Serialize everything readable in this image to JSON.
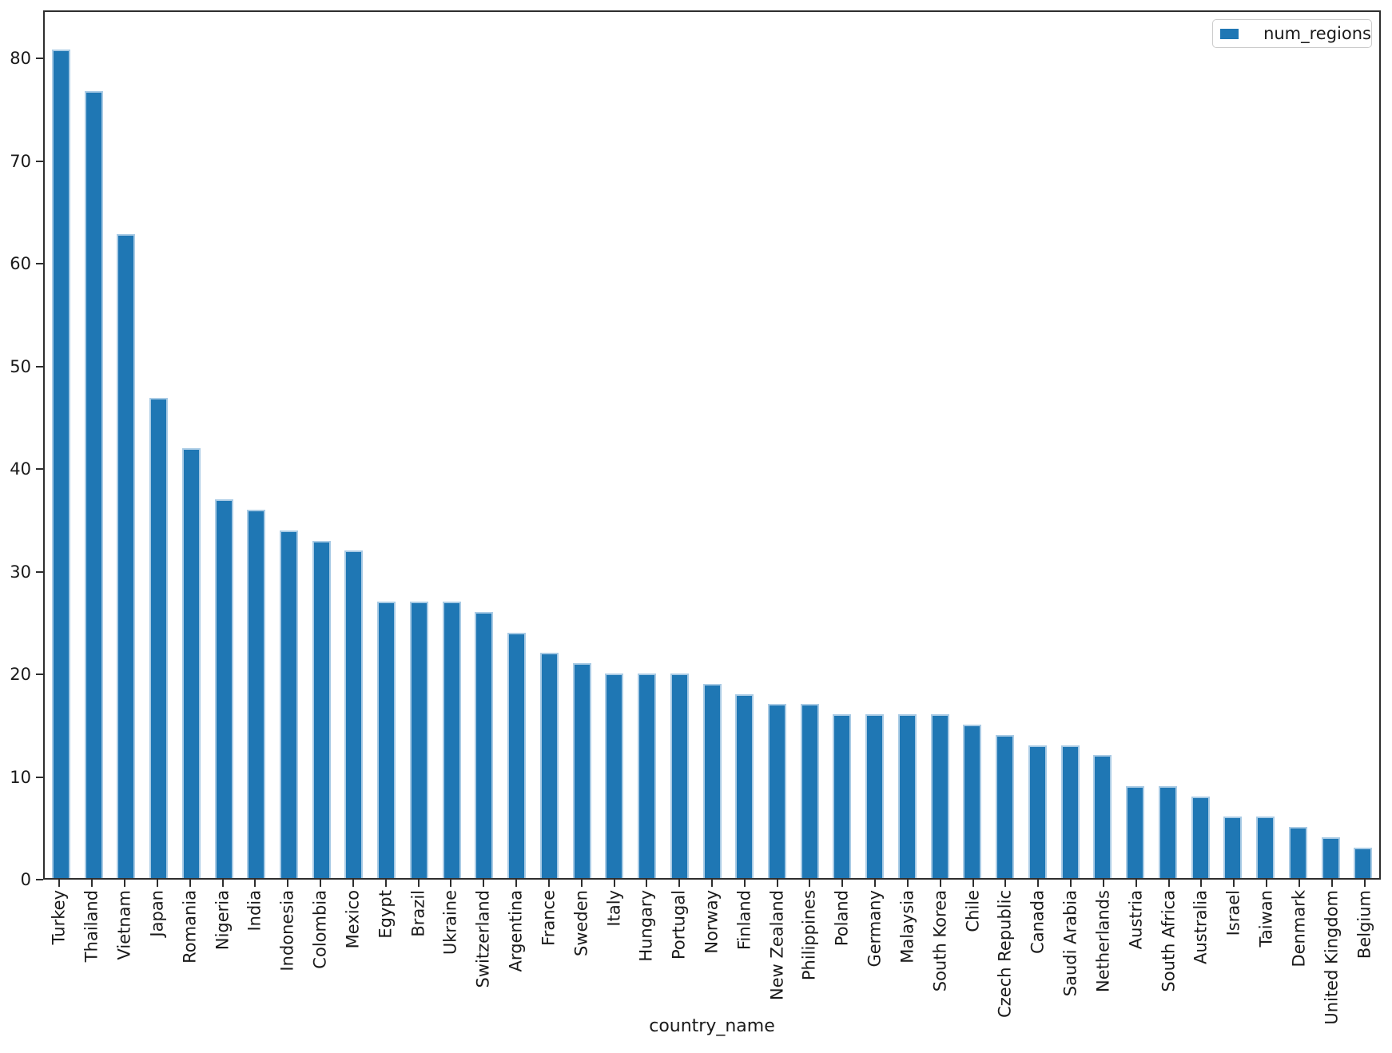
{
  "figure": {
    "background": "#ffffff"
  },
  "chart_data": {
    "type": "bar",
    "title": "",
    "xlabel": "country_name",
    "ylabel": "",
    "legend": {
      "label": "num_regions",
      "position": "upper right"
    },
    "grid": false,
    "bar_color": "#1f77b4",
    "bar_edge_color": "#a9cbe5",
    "axis_color": "#2e2e2e",
    "text_color": "#1a1a1a",
    "ylim": [
      0,
      84.7
    ],
    "yticks": [
      0,
      10,
      20,
      30,
      40,
      50,
      60,
      70,
      80
    ],
    "categories": [
      "Turkey",
      "Thailand",
      "Vietnam",
      "Japan",
      "Romania",
      "Nigeria",
      "India",
      "Indonesia",
      "Colombia",
      "Mexico",
      "Egypt",
      "Brazil",
      "Ukraine",
      "Switzerland",
      "Argentina",
      "France",
      "Sweden",
      "Italy",
      "Hungary",
      "Portugal",
      "Norway",
      "Finland",
      "New Zealand",
      "Philippines",
      "Poland",
      "Germany",
      "Malaysia",
      "South Korea",
      "Chile",
      "Czech Republic",
      "Canada",
      "Saudi Arabia",
      "Netherlands",
      "Austria",
      "South Africa",
      "Australia",
      "Israel",
      "Taiwan",
      "Denmark",
      "United Kingdom",
      "Belgium"
    ],
    "values": [
      81,
      77,
      63,
      47,
      42,
      37,
      36,
      34,
      33,
      32,
      27,
      27,
      27,
      26,
      24,
      22,
      21,
      20,
      20,
      20,
      19,
      18,
      17,
      17,
      16,
      16,
      16,
      16,
      15,
      14,
      13,
      13,
      12,
      9,
      9,
      8,
      6,
      6,
      5,
      4,
      3
    ]
  }
}
